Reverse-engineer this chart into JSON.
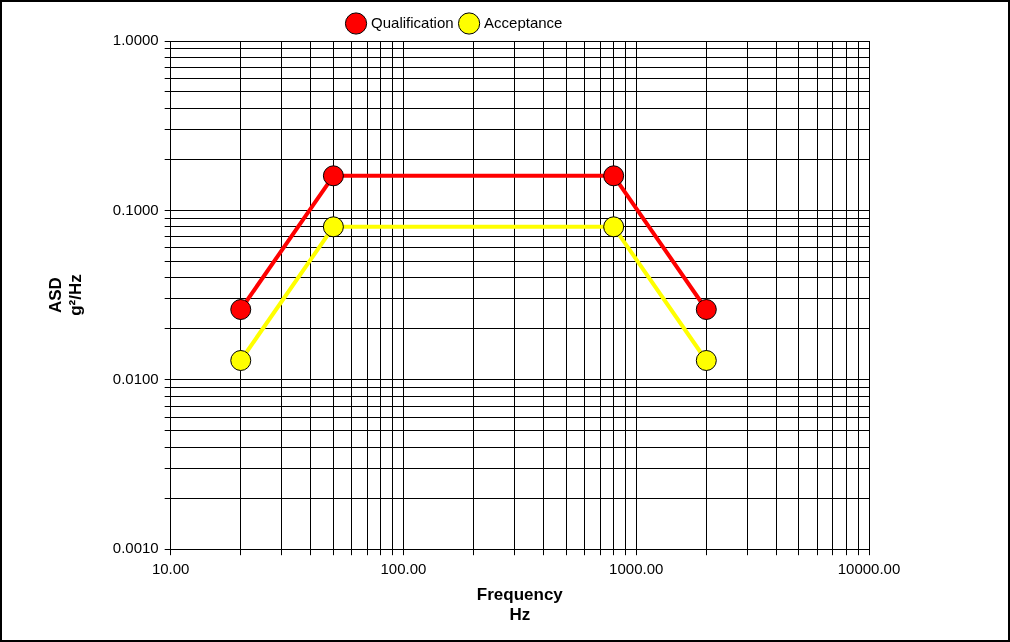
{
  "chart_data": {
    "type": "line",
    "xlabel": "Frequency\nHz",
    "ylabel": "ASD\ng²/Hz",
    "log": "xy",
    "grid": true,
    "legend": "top",
    "marker": "circle",
    "line_style": "solid",
    "xlim": [
      10,
      10000
    ],
    "ylim": [
      0.001,
      1
    ],
    "xticks": [
      {
        "value": 10,
        "label": "10.00"
      },
      {
        "value": 20,
        "label": null
      },
      {
        "value": 30,
        "label": null
      },
      {
        "value": 40,
        "label": null
      },
      {
        "value": 50,
        "label": null
      },
      {
        "value": 60,
        "label": null
      },
      {
        "value": 70,
        "label": null
      },
      {
        "value": 80,
        "label": null
      },
      {
        "value": 90,
        "label": null
      },
      {
        "value": 100,
        "label": "100.00"
      },
      {
        "value": 200,
        "label": null
      },
      {
        "value": 300,
        "label": null
      },
      {
        "value": 400,
        "label": null
      },
      {
        "value": 500,
        "label": null
      },
      {
        "value": 600,
        "label": null
      },
      {
        "value": 700,
        "label": null
      },
      {
        "value": 800,
        "label": null
      },
      {
        "value": 900,
        "label": null
      },
      {
        "value": 1000,
        "label": "1000.00"
      },
      {
        "value": 2000,
        "label": null
      },
      {
        "value": 3000,
        "label": null
      },
      {
        "value": 4000,
        "label": null
      },
      {
        "value": 5000,
        "label": null
      },
      {
        "value": 6000,
        "label": null
      },
      {
        "value": 7000,
        "label": null
      },
      {
        "value": 8000,
        "label": null
      },
      {
        "value": 9000,
        "label": null
      },
      {
        "value": 10000,
        "label": "10000.00"
      }
    ],
    "yticks": [
      {
        "value": 0.001,
        "label": "0.0010"
      },
      {
        "value": 0.002,
        "label": null
      },
      {
        "value": 0.003,
        "label": null
      },
      {
        "value": 0.004,
        "label": null
      },
      {
        "value": 0.005,
        "label": null
      },
      {
        "value": 0.006,
        "label": null
      },
      {
        "value": 0.007,
        "label": null
      },
      {
        "value": 0.008,
        "label": null
      },
      {
        "value": 0.009,
        "label": null
      },
      {
        "value": 0.01,
        "label": "0.0100"
      },
      {
        "value": 0.02,
        "label": null
      },
      {
        "value": 0.03,
        "label": null
      },
      {
        "value": 0.04,
        "label": null
      },
      {
        "value": 0.05,
        "label": null
      },
      {
        "value": 0.06,
        "label": null
      },
      {
        "value": 0.07,
        "label": null
      },
      {
        "value": 0.08,
        "label": null
      },
      {
        "value": 0.09,
        "label": null
      },
      {
        "value": 0.1,
        "label": "0.1000"
      },
      {
        "value": 0.2,
        "label": null
      },
      {
        "value": 0.3,
        "label": null
      },
      {
        "value": 0.4,
        "label": null
      },
      {
        "value": 0.5,
        "label": null
      },
      {
        "value": 0.6,
        "label": null
      },
      {
        "value": 0.7,
        "label": null
      },
      {
        "value": 0.8,
        "label": null
      },
      {
        "value": 0.9,
        "label": null
      },
      {
        "value": 1,
        "label": "1.0000"
      }
    ],
    "x": [
      20,
      50,
      800,
      2000
    ],
    "series": [
      {
        "name": "Qualification",
        "color": "#ff0000",
        "values": [
          0.026,
          0.16,
          0.16,
          0.026
        ]
      },
      {
        "name": "Acceptance",
        "color": "#ffff00",
        "values": [
          0.013,
          0.08,
          0.08,
          0.013
        ]
      }
    ]
  }
}
